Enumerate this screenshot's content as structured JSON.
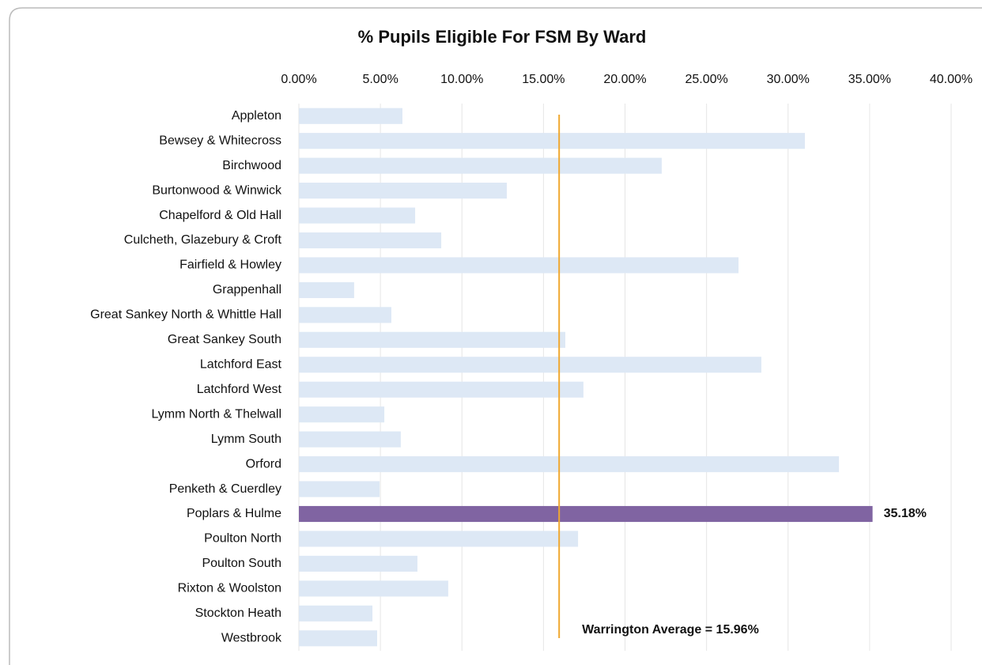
{
  "chart_data": {
    "type": "bar",
    "orientation": "horizontal",
    "title": "% Pupils Eligible For FSM By Ward",
    "categories": [
      "Appleton",
      "Bewsey & Whitecross",
      "Birchwood",
      "Burtonwood & Winwick",
      "Chapelford & Old Hall",
      "Culcheth, Glazebury & Croft",
      "Fairfield & Howley",
      "Grappenhall",
      "Great Sankey North & Whittle Hall",
      "Great Sankey South",
      "Latchford East",
      "Latchford West",
      "Lymm North & Thelwall",
      "Lymm South",
      "Orford",
      "Penketh & Cuerdley",
      "Poplars & Hulme",
      "Poulton North",
      "Poulton South",
      "Rixton & Woolston",
      "Stockton Heath",
      "Westbrook"
    ],
    "values": [
      6.35,
      31.03,
      22.25,
      12.75,
      7.13,
      8.73,
      26.96,
      3.39,
      5.67,
      16.34,
      28.36,
      17.45,
      5.24,
      6.25,
      33.12,
      4.95,
      35.18,
      17.12,
      7.27,
      9.16,
      4.51,
      4.8
    ],
    "value_labels": [
      null,
      null,
      null,
      null,
      null,
      null,
      null,
      null,
      null,
      null,
      null,
      null,
      null,
      null,
      null,
      null,
      "35.18%",
      null,
      null,
      null,
      null,
      null
    ],
    "colors": [
      "#dde8f5",
      "#dde8f5",
      "#dde8f5",
      "#dde8f5",
      "#dde8f5",
      "#dde8f5",
      "#dde8f5",
      "#dde8f5",
      "#dde8f5",
      "#dde8f5",
      "#dde8f5",
      "#dde8f5",
      "#dde8f5",
      "#dde8f5",
      "#dde8f5",
      "#dde8f5",
      "#8064a2",
      "#dde8f5",
      "#dde8f5",
      "#dde8f5",
      "#dde8f5",
      "#dde8f5"
    ],
    "xlim": [
      0,
      40
    ],
    "xticks": [
      {
        "value": 0,
        "label": "0.00%"
      },
      {
        "value": 5,
        "label": "5.00%"
      },
      {
        "value": 10,
        "label": "10.00%"
      },
      {
        "value": 15,
        "label": "15.00%"
      },
      {
        "value": 20,
        "label": "20.00%"
      },
      {
        "value": 25,
        "label": "25.00%"
      },
      {
        "value": 30,
        "label": "30.00%"
      },
      {
        "value": 35,
        "label": "35.00%"
      },
      {
        "value": 40,
        "label": "40.00%"
      }
    ],
    "grid": true,
    "reference_line": {
      "value": 15.96,
      "label": "Warrington Average = 15.96%",
      "color": "#f0a830"
    }
  }
}
